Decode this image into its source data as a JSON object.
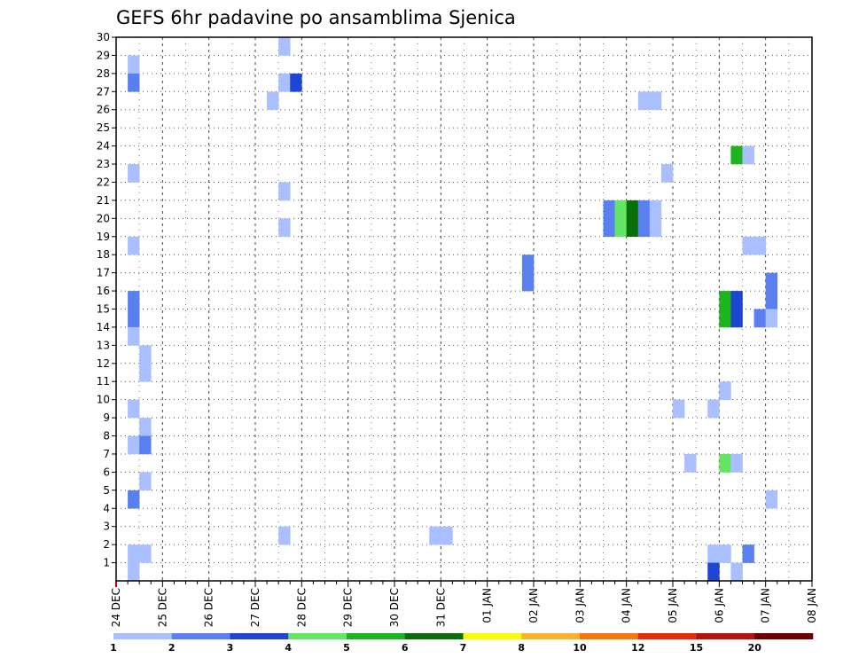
{
  "chart_data": {
    "type": "heatmap",
    "title": "GEFS 6hr padavine po ansamblima Sjenica",
    "ylim": [
      0,
      30
    ],
    "y_ticks": [
      "1",
      "2",
      "3",
      "4",
      "5",
      "6",
      "7",
      "8",
      "9",
      "10",
      "11",
      "12",
      "13",
      "14",
      "15",
      "16",
      "17",
      "18",
      "19",
      "20",
      "21",
      "22",
      "23",
      "24",
      "25",
      "26",
      "27",
      "28",
      "29",
      "30"
    ],
    "x_ticks": [
      "24 DEC",
      "25 DEC",
      "26 DEC",
      "27 DEC",
      "28 DEC",
      "29 DEC",
      "30 DEC",
      "31 DEC",
      "01 JAN",
      "02 JAN",
      "03 JAN",
      "04 JAN",
      "05 JAN",
      "06 JAN",
      "07 JAN",
      "08 JAN"
    ],
    "x_unit": "days since 24 DEC",
    "grid": true,
    "colorbar": {
      "labels": [
        "1",
        "2",
        "3",
        "4",
        "5",
        "6",
        "7",
        "8",
        "10",
        "12",
        "15",
        "20"
      ],
      "colors": [
        "#aabfff",
        "#5a80f0",
        "#1e46d2",
        "#64e664",
        "#1eb41e",
        "#0a6e0a",
        "#fafa00",
        "#fab428",
        "#f5780a",
        "#e12d0a",
        "#b4140a",
        "#6e0000"
      ]
    },
    "cells": [
      {
        "x": 0.25,
        "y": 28,
        "v": 1
      },
      {
        "x": 0.25,
        "y": 27,
        "v": 2
      },
      {
        "x": 0.25,
        "y": 22,
        "v": 1
      },
      {
        "x": 0.25,
        "y": 18,
        "v": 1
      },
      {
        "x": 0.25,
        "y": 15,
        "v": 2
      },
      {
        "x": 0.25,
        "y": 14,
        "v": 2
      },
      {
        "x": 0.25,
        "y": 13,
        "v": 1
      },
      {
        "x": 0.5,
        "y": 12,
        "v": 1
      },
      {
        "x": 0.5,
        "y": 11,
        "v": 1
      },
      {
        "x": 0.25,
        "y": 9,
        "v": 1
      },
      {
        "x": 0.5,
        "y": 8,
        "v": 1
      },
      {
        "x": 0.25,
        "y": 7,
        "v": 1
      },
      {
        "x": 0.5,
        "y": 7,
        "v": 2
      },
      {
        "x": 0.5,
        "y": 5,
        "v": 1
      },
      {
        "x": 0.25,
        "y": 4,
        "v": 2
      },
      {
        "x": 0.25,
        "y": 1,
        "v": 1
      },
      {
        "x": 0.5,
        "y": 1,
        "v": 1
      },
      {
        "x": 0.25,
        "y": 0,
        "v": 1
      },
      {
        "x": 3.5,
        "y": 29,
        "v": 1
      },
      {
        "x": 3.5,
        "y": 27,
        "v": 1
      },
      {
        "x": 3.75,
        "y": 27,
        "v": 3
      },
      {
        "x": 3.25,
        "y": 26,
        "v": 1
      },
      {
        "x": 3.5,
        "y": 21,
        "v": 1
      },
      {
        "x": 3.5,
        "y": 19,
        "v": 1
      },
      {
        "x": 3.5,
        "y": 2,
        "v": 1
      },
      {
        "x": 6.75,
        "y": 2,
        "v": 1
      },
      {
        "x": 7.0,
        "y": 2,
        "v": 1
      },
      {
        "x": 8.75,
        "y": 17,
        "v": 2
      },
      {
        "x": 8.75,
        "y": 16,
        "v": 2
      },
      {
        "x": 10.5,
        "y": 20,
        "v": 2
      },
      {
        "x": 10.75,
        "y": 20,
        "v": 4
      },
      {
        "x": 11.0,
        "y": 20,
        "v": 6
      },
      {
        "x": 11.25,
        "y": 20,
        "v": 2
      },
      {
        "x": 11.5,
        "y": 20,
        "v": 1
      },
      {
        "x": 10.5,
        "y": 19,
        "v": 2
      },
      {
        "x": 10.75,
        "y": 19,
        "v": 4
      },
      {
        "x": 11.0,
        "y": 19,
        "v": 6
      },
      {
        "x": 11.25,
        "y": 19,
        "v": 2
      },
      {
        "x": 11.5,
        "y": 19,
        "v": 1
      },
      {
        "x": 11.25,
        "y": 26,
        "v": 1
      },
      {
        "x": 11.5,
        "y": 26,
        "v": 1
      },
      {
        "x": 11.75,
        "y": 22,
        "v": 1
      },
      {
        "x": 12.0,
        "y": 9,
        "v": 1
      },
      {
        "x": 12.25,
        "y": 6,
        "v": 1
      },
      {
        "x": 13.25,
        "y": 23,
        "v": 5
      },
      {
        "x": 13.5,
        "y": 23,
        "v": 1
      },
      {
        "x": 13.5,
        "y": 18,
        "v": 1
      },
      {
        "x": 13.75,
        "y": 18,
        "v": 1
      },
      {
        "x": 14.0,
        "y": 16,
        "v": 2
      },
      {
        "x": 14.0,
        "y": 15,
        "v": 2
      },
      {
        "x": 13.0,
        "y": 15,
        "v": 5
      },
      {
        "x": 13.25,
        "y": 15,
        "v": 3
      },
      {
        "x": 13.0,
        "y": 14,
        "v": 5
      },
      {
        "x": 13.25,
        "y": 14,
        "v": 3
      },
      {
        "x": 13.75,
        "y": 14,
        "v": 2
      },
      {
        "x": 14.0,
        "y": 14,
        "v": 1
      },
      {
        "x": 13.0,
        "y": 10,
        "v": 1
      },
      {
        "x": 12.75,
        "y": 9,
        "v": 1
      },
      {
        "x": 13.0,
        "y": 6,
        "v": 4
      },
      {
        "x": 13.25,
        "y": 6,
        "v": 1
      },
      {
        "x": 14.0,
        "y": 4,
        "v": 1
      },
      {
        "x": 12.75,
        "y": 1,
        "v": 1
      },
      {
        "x": 13.0,
        "y": 1,
        "v": 1
      },
      {
        "x": 13.5,
        "y": 1,
        "v": 2
      },
      {
        "x": 12.75,
        "y": 0,
        "v": 3
      },
      {
        "x": 13.25,
        "y": 0,
        "v": 1
      }
    ]
  }
}
